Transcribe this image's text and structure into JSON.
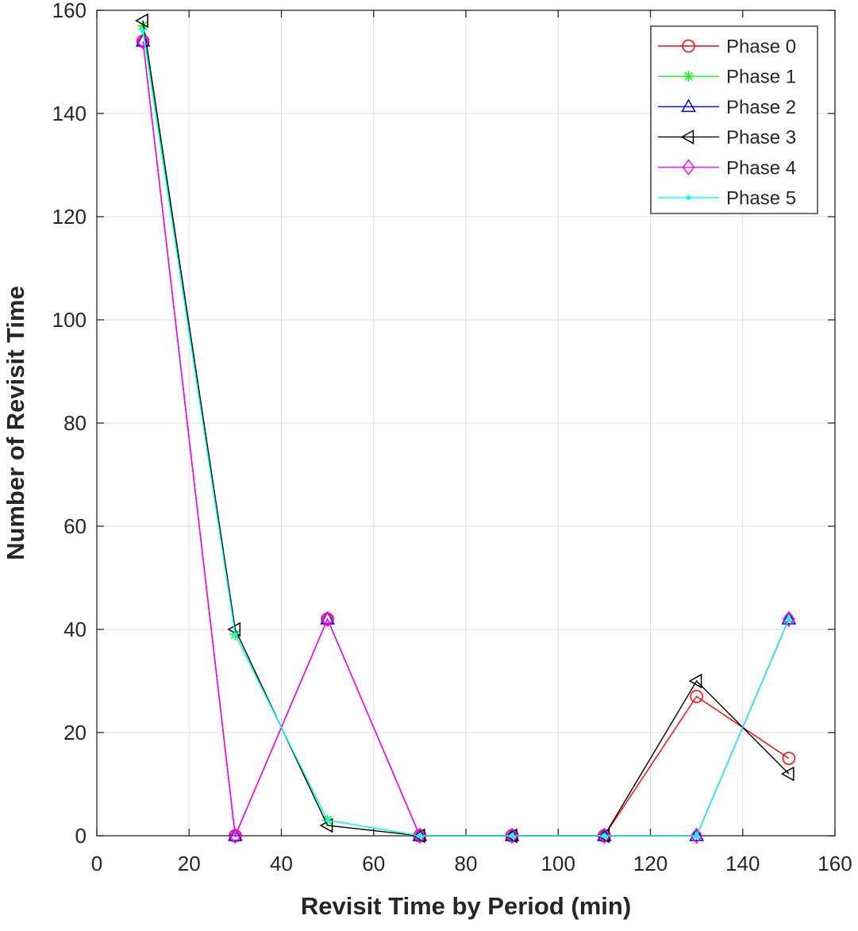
{
  "chart_data": {
    "type": "line",
    "title": "",
    "xlabel": "Revisit Time by Period (min)",
    "ylabel": "Number of Revisit Time",
    "xlim": [
      0,
      160
    ],
    "ylim": [
      0,
      160
    ],
    "xticks": [
      0,
      20,
      40,
      60,
      80,
      100,
      120,
      140,
      160
    ],
    "yticks": [
      0,
      20,
      40,
      60,
      80,
      100,
      120,
      140,
      160
    ],
    "grid": true,
    "legend_position": "top-right",
    "x": [
      10,
      30,
      50,
      70,
      90,
      110,
      130,
      150
    ],
    "series": [
      {
        "name": "Phase 0",
        "color": "#ff0000",
        "marker": "circle",
        "values": [
          154,
          0,
          42,
          0,
          0,
          0,
          27,
          15
        ]
      },
      {
        "name": "Phase 1",
        "color": "#00ff00",
        "marker": "asterisk",
        "values": [
          157,
          39,
          3,
          0,
          0,
          0,
          0,
          42
        ]
      },
      {
        "name": "Phase 2",
        "color": "#0000ff",
        "marker": "triangle-up",
        "values": [
          154,
          0,
          42,
          0,
          0,
          0,
          0,
          42
        ]
      },
      {
        "name": "Phase 3",
        "color": "#000000",
        "marker": "triangle-left",
        "values": [
          158,
          40,
          2,
          0,
          0,
          0,
          30,
          12
        ]
      },
      {
        "name": "Phase 4",
        "color": "#ff00ff",
        "marker": "diamond",
        "values": [
          154,
          0,
          42,
          0,
          0,
          0,
          0,
          42
        ]
      },
      {
        "name": "Phase 5",
        "color": "#00ffff",
        "marker": "dot",
        "values": [
          156,
          39,
          3,
          0,
          0,
          0,
          0,
          42
        ]
      }
    ]
  }
}
